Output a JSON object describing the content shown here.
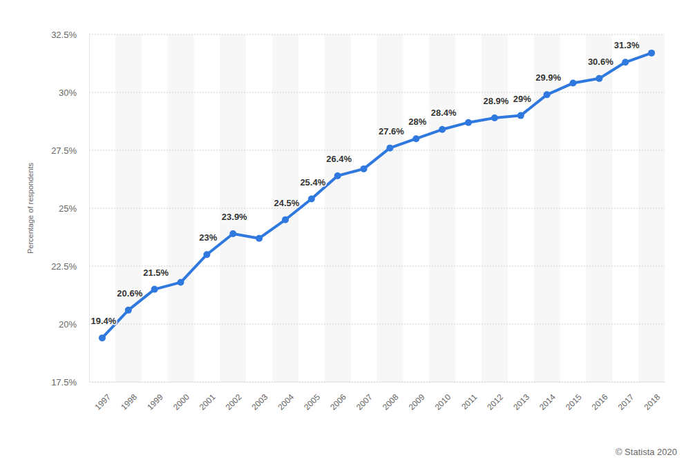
{
  "chart_data": {
    "type": "line",
    "categories": [
      "1997",
      "1998",
      "1999",
      "2000",
      "2001",
      "2002",
      "2003",
      "2004",
      "2005",
      "2006",
      "2007",
      "2008",
      "2009",
      "2010",
      "2011",
      "2012",
      "2013",
      "2014",
      "2015",
      "2016",
      "2017",
      "2018"
    ],
    "values": [
      19.4,
      20.6,
      21.5,
      21.8,
      23,
      23.9,
      23.7,
      24.5,
      25.4,
      26.4,
      26.7,
      27.6,
      28,
      28.4,
      28.7,
      28.9,
      29,
      29.9,
      30.4,
      30.6,
      31.3,
      31.7
    ],
    "value_labels": [
      "19.4%",
      "20.6%",
      "21.5%",
      null,
      "23%",
      "23.9%",
      null,
      "24.5%",
      "25.4%",
      "26.4%",
      null,
      "27.6%",
      "28%",
      "28.4%",
      null,
      "28.9%",
      "29%",
      "29.9%",
      null,
      "30.6%",
      "31.3%",
      null
    ],
    "color": "#2f78de",
    "ylabel": "Percentage of respondents",
    "ylim": [
      17.5,
      32.5
    ],
    "yticks": [
      {
        "value": 17.5,
        "label": "17.5%"
      },
      {
        "value": 20,
        "label": "20%"
      },
      {
        "value": 22.5,
        "label": "22.5%"
      },
      {
        "value": 25,
        "label": "25%"
      },
      {
        "value": 27.5,
        "label": "27.5%"
      },
      {
        "value": 30,
        "label": "30%"
      },
      {
        "value": 32.5,
        "label": "32.5%"
      }
    ],
    "grid": true,
    "data_labels": true,
    "marker": "circle",
    "source": "© Statista 2020"
  }
}
